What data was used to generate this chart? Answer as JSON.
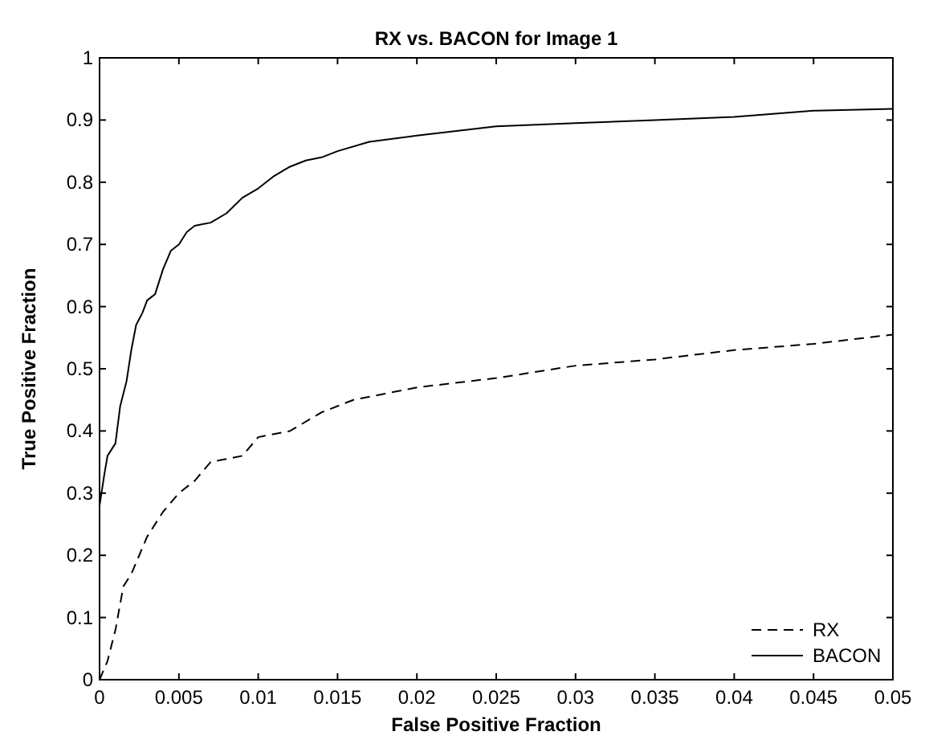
{
  "chart_data": {
    "type": "line",
    "title": "RX vs. BACON for Image 1",
    "xlabel": "False Positive Fraction",
    "ylabel": "True Positive Fraction",
    "xlim": [
      0,
      0.05
    ],
    "xticks": [
      0,
      0.005,
      0.01,
      0.015,
      0.02,
      0.025,
      0.03,
      0.035,
      0.04,
      0.045,
      0.05
    ],
    "ylim": [
      0,
      1
    ],
    "yticks": [
      0,
      0.1,
      0.2,
      0.3,
      0.4,
      0.5,
      0.6,
      0.7,
      0.8,
      0.9,
      1
    ],
    "grid": false,
    "legend": "bottom right",
    "series": [
      {
        "name": "RX",
        "color": "#000000",
        "line_style": "dashed",
        "x": [
          0,
          0.0005,
          0.001,
          0.0015,
          0.002,
          0.003,
          0.004,
          0.005,
          0.006,
          0.007,
          0.008,
          0.009,
          0.01,
          0.012,
          0.014,
          0.016,
          0.018,
          0.02,
          0.025,
          0.03,
          0.035,
          0.04,
          0.045,
          0.05
        ],
        "values": [
          0,
          0.03,
          0.08,
          0.15,
          0.17,
          0.23,
          0.27,
          0.3,
          0.32,
          0.35,
          0.355,
          0.36,
          0.39,
          0.4,
          0.43,
          0.45,
          0.46,
          0.47,
          0.485,
          0.505,
          0.515,
          0.53,
          0.54,
          0.555
        ]
      },
      {
        "name": "BACON",
        "color": "#000000",
        "line_style": "solid",
        "x": [
          0,
          0.0003,
          0.0005,
          0.001,
          0.0013,
          0.0017,
          0.002,
          0.0023,
          0.0027,
          0.003,
          0.0035,
          0.004,
          0.0045,
          0.005,
          0.0055,
          0.006,
          0.007,
          0.008,
          0.009,
          0.01,
          0.011,
          0.012,
          0.013,
          0.014,
          0.015,
          0.017,
          0.02,
          0.025,
          0.03,
          0.035,
          0.04,
          0.045,
          0.05
        ],
        "values": [
          0.28,
          0.33,
          0.36,
          0.38,
          0.44,
          0.48,
          0.53,
          0.57,
          0.59,
          0.61,
          0.62,
          0.66,
          0.69,
          0.7,
          0.72,
          0.73,
          0.735,
          0.75,
          0.775,
          0.79,
          0.81,
          0.825,
          0.835,
          0.84,
          0.85,
          0.865,
          0.875,
          0.89,
          0.895,
          0.9,
          0.905,
          0.915,
          0.918
        ]
      }
    ]
  }
}
